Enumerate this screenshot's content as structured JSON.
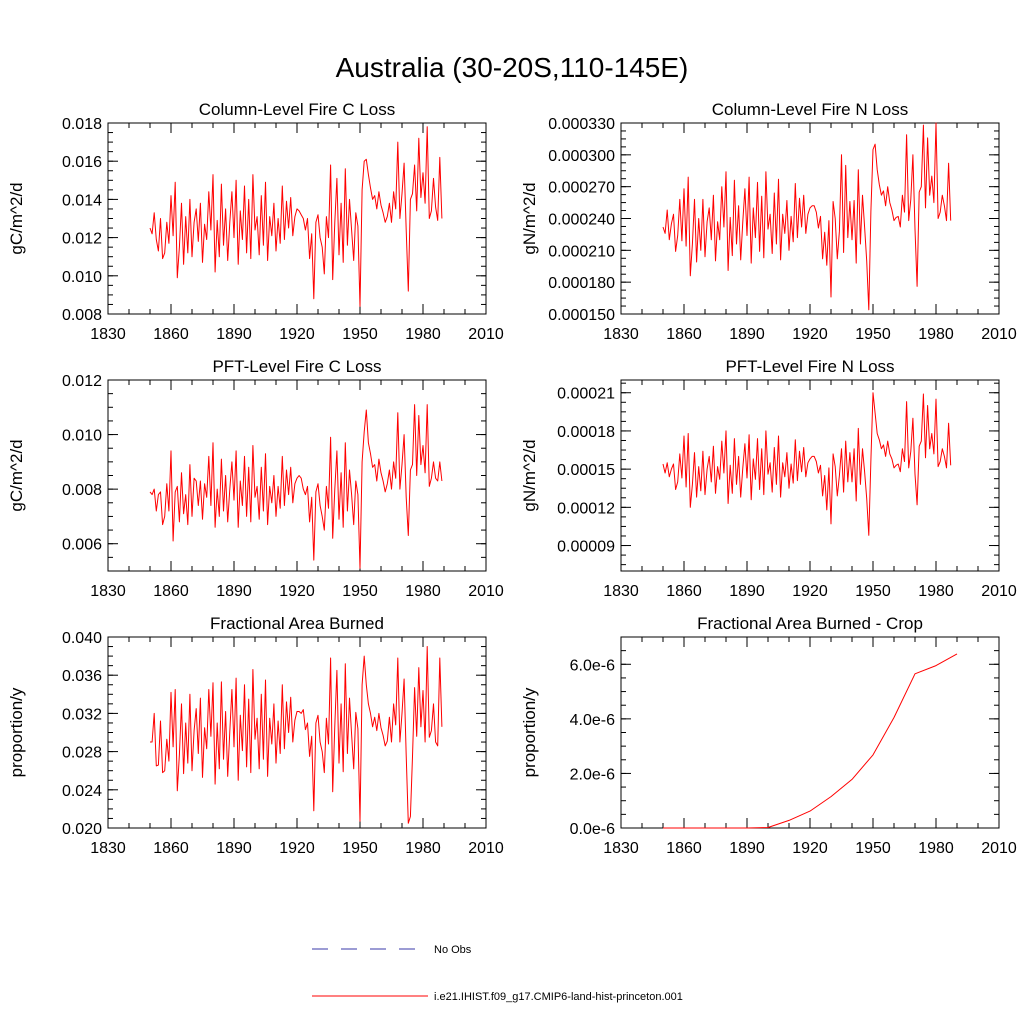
{
  "title": "Australia (30-20S,110-145E)",
  "colors": {
    "model_line": "#ff0000",
    "obs_line": "#3a3aa8",
    "axes": "#000000"
  },
  "legend": {
    "entries": [
      {
        "label": "No Obs",
        "style": "dashed",
        "color": "#3a3aa8"
      },
      {
        "label": "i.e21.IHIST.f09_g17.CMIP6-land-hist-princeton.001",
        "style": "solid",
        "color": "#ff0000"
      }
    ]
  },
  "chart_data": [
    {
      "type": "line",
      "title": "Column-Level Fire C Loss",
      "ylabel": "gC/m^2/d",
      "xlim": [
        1830,
        2010
      ],
      "xticks": [
        "1830",
        "1860",
        "1890",
        "1920",
        "1950",
        "1980",
        "2010"
      ],
      "ylim": [
        0.008,
        0.018
      ],
      "yticks": [
        "0.008",
        "0.010",
        "0.012",
        "0.014",
        "0.016",
        "0.018"
      ],
      "series": [
        {
          "x_start": 1850,
          "x_step": 1,
          "values": [
            0.0125,
            0.0122,
            0.0133,
            0.0119,
            0.0113,
            0.013,
            0.0109,
            0.0112,
            0.0128,
            0.0117,
            0.0142,
            0.0121,
            0.0149,
            0.0099,
            0.0115,
            0.0138,
            0.0106,
            0.0131,
            0.0112,
            0.014,
            0.011,
            0.0128,
            0.0135,
            0.0118,
            0.0138,
            0.0107,
            0.0127,
            0.0119,
            0.0144,
            0.0124,
            0.0153,
            0.0102,
            0.0129,
            0.011,
            0.0148,
            0.0116,
            0.0135,
            0.0108,
            0.0128,
            0.0144,
            0.012,
            0.015,
            0.0106,
            0.0134,
            0.0119,
            0.0147,
            0.0112,
            0.014,
            0.0109,
            0.0153,
            0.0124,
            0.0131,
            0.0111,
            0.0142,
            0.0116,
            0.0149,
            0.0108,
            0.0131,
            0.0121,
            0.0138,
            0.0113,
            0.013,
            0.0117,
            0.0147,
            0.0119,
            0.0139,
            0.0125,
            0.0141,
            0.0121,
            0.0131,
            0.0135,
            0.0134,
            0.0132,
            0.013,
            0.0124,
            0.013,
            0.0109,
            0.0122,
            0.0088,
            0.0128,
            0.0132,
            0.012,
            0.0115,
            0.0101,
            0.0131,
            0.012,
            0.0158,
            0.0098,
            0.0128,
            0.0151,
            0.0111,
            0.0138,
            0.0107,
            0.0156,
            0.0116,
            0.014,
            0.0124,
            0.0108,
            0.0133,
            0.0126,
            0.0084,
            0.0145,
            0.016,
            0.0161,
            0.0153,
            0.0146,
            0.014,
            0.0142,
            0.0135,
            0.0144,
            0.0137,
            0.0133,
            0.0128,
            0.0131,
            0.0138,
            0.0128,
            0.0144,
            0.0135,
            0.017,
            0.013,
            0.0143,
            0.0159,
            0.0124,
            0.0092,
            0.014,
            0.0143,
            0.0158,
            0.0134,
            0.0172,
            0.0141,
            0.0154,
            0.0138,
            0.0178,
            0.013,
            0.0134,
            0.0151,
            0.0136,
            0.0129,
            0.0162,
            0.013
          ]
        }
      ]
    },
    {
      "type": "line",
      "title": "Column-Level Fire N Loss",
      "ylabel": "gN/m^2/d",
      "xlim": [
        1830,
        2010
      ],
      "xticks": [
        "1830",
        "1860",
        "1890",
        "1920",
        "1950",
        "1980",
        "2010"
      ],
      "ylim": [
        0.00015,
        0.00033
      ],
      "yticks": [
        "0.000150",
        "0.000180",
        "0.000210",
        "0.000240",
        "0.000270",
        "0.000300",
        "0.000330"
      ],
      "series": [
        {
          "x_start": 1850,
          "x_step": 1,
          "values": [
            0.000232,
            0.000226,
            0.000248,
            0.00022,
            0.000235,
            0.000244,
            0.000209,
            0.000224,
            0.000258,
            0.000219,
            0.000268,
            0.000214,
            0.000279,
            0.000186,
            0.000216,
            0.000258,
            0.000199,
            0.00024,
            0.00021,
            0.000258,
            0.000204,
            0.000237,
            0.00025,
            0.00022,
            0.000262,
            0.0002,
            0.000237,
            0.00022,
            0.00027,
            0.000232,
            0.000284,
            0.000191,
            0.000241,
            0.000205,
            0.000276,
            0.000216,
            0.000252,
            0.000201,
            0.000237,
            0.000268,
            0.000224,
            0.000279,
            0.000198,
            0.00025,
            0.000222,
            0.000274,
            0.000209,
            0.000261,
            0.000203,
            0.000284,
            0.00023,
            0.000244,
            0.000207,
            0.000264,
            0.000216,
            0.000277,
            0.000201,
            0.000244,
            0.000226,
            0.000257,
            0.00021,
            0.000242,
            0.000218,
            0.000273,
            0.000222,
            0.000259,
            0.000232,
            0.000262,
            0.000226,
            0.000244,
            0.00025,
            0.000252,
            0.000252,
            0.000246,
            0.000231,
            0.000242,
            0.000202,
            0.000227,
            0.000196,
            0.000238,
            0.000166,
            0.000256,
            0.00024,
            0.000202,
            0.000228,
            0.0003,
            0.000208,
            0.00029,
            0.000222,
            0.000256,
            0.00022,
            0.000257,
            0.000198,
            0.000286,
            0.000216,
            0.000262,
            0.000232,
            0.0002,
            0.000154,
            0.000247,
            0.000305,
            0.00031,
            0.000286,
            0.000272,
            0.000262,
            0.000266,
            0.000252,
            0.00027,
            0.000255,
            0.000248,
            0.000238,
            0.000241,
            0.000242,
            0.000232,
            0.000262,
            0.000246,
            0.000319,
            0.000238,
            0.000258,
            0.0003,
            0.00023,
            0.000176,
            0.000265,
            0.00027,
            0.000328,
            0.00025,
            0.000316,
            0.000262,
            0.00028,
            0.000255,
            0.00033,
            0.00024,
            0.000246,
            0.000262,
            0.000252,
            0.000238,
            0.000292,
            0.000238
          ]
        }
      ]
    },
    {
      "type": "line",
      "title": "PFT-Level Fire C Loss",
      "ylabel": "gC/m^2/d",
      "xlim": [
        1830,
        2010
      ],
      "xticks": [
        "1830",
        "1860",
        "1890",
        "1920",
        "1950",
        "1980",
        "2010"
      ],
      "ylim": [
        0.005,
        0.012
      ],
      "yticks": [
        "0.006",
        "0.008",
        "0.010",
        "0.012"
      ],
      "series": [
        {
          "x_start": 1850,
          "x_step": 1,
          "values": [
            0.0079,
            0.0078,
            0.008,
            0.0072,
            0.0078,
            0.0079,
            0.0067,
            0.007,
            0.0082,
            0.0072,
            0.0094,
            0.0061,
            0.0079,
            0.0081,
            0.0068,
            0.0086,
            0.0071,
            0.0078,
            0.0067,
            0.0089,
            0.007,
            0.0084,
            0.0083,
            0.0074,
            0.0083,
            0.0069,
            0.0082,
            0.0077,
            0.0092,
            0.0074,
            0.0097,
            0.0066,
            0.008,
            0.007,
            0.0091,
            0.0072,
            0.0085,
            0.0068,
            0.008,
            0.009,
            0.0076,
            0.0094,
            0.0066,
            0.0083,
            0.0074,
            0.0092,
            0.007,
            0.0088,
            0.0068,
            0.0096,
            0.0077,
            0.0081,
            0.0069,
            0.0088,
            0.0072,
            0.0093,
            0.0067,
            0.0081,
            0.0075,
            0.0085,
            0.007,
            0.0081,
            0.0073,
            0.0092,
            0.0074,
            0.0087,
            0.0078,
            0.0088,
            0.0075,
            0.0082,
            0.0084,
            0.0085,
            0.0084,
            0.008,
            0.0078,
            0.0081,
            0.0068,
            0.0077,
            0.0054,
            0.0079,
            0.0082,
            0.0074,
            0.007,
            0.0065,
            0.0081,
            0.0073,
            0.0099,
            0.0062,
            0.008,
            0.0094,
            0.0069,
            0.0086,
            0.0066,
            0.0097,
            0.0072,
            0.0087,
            0.0078,
            0.0067,
            0.0083,
            0.0078,
            0.0051,
            0.009,
            0.0101,
            0.0109,
            0.0097,
            0.0093,
            0.0088,
            0.0089,
            0.0083,
            0.0091,
            0.0086,
            0.0083,
            0.0079,
            0.0082,
            0.0087,
            0.008,
            0.009,
            0.0084,
            0.0108,
            0.008,
            0.0089,
            0.01,
            0.0077,
            0.0063,
            0.0087,
            0.0089,
            0.0111,
            0.0085,
            0.0107,
            0.0089,
            0.0096,
            0.0086,
            0.0111,
            0.0081,
            0.0084,
            0.009,
            0.0084,
            0.0083,
            0.009,
            0.0083
          ]
        }
      ]
    },
    {
      "type": "line",
      "title": "PFT-Level Fire N Loss",
      "ylabel": "gN/m^2/d",
      "xlim": [
        1830,
        2010
      ],
      "xticks": [
        "1830",
        "1860",
        "1890",
        "1920",
        "1950",
        "1980",
        "2010"
      ],
      "ylim": [
        7e-05,
        0.00022
      ],
      "yticks": [
        "0.00009",
        "0.00012",
        "0.00015",
        "0.00018",
        "0.00021"
      ],
      "series": [
        {
          "x_start": 1850,
          "x_step": 1,
          "values": [
            0.000154,
            0.000147,
            0.000155,
            0.000144,
            0.00015,
            0.000154,
            0.000134,
            0.00014,
            0.000162,
            0.000143,
            0.000176,
            0.000136,
            0.000178,
            0.00012,
            0.000138,
            0.000163,
            0.000128,
            0.000152,
            0.000133,
            0.000164,
            0.00013,
            0.00015,
            0.00016,
            0.00014,
            0.000168,
            0.000131,
            0.000152,
            0.000142,
            0.000172,
            0.000147,
            0.00018,
            0.000123,
            0.000153,
            0.000131,
            0.000174,
            0.000138,
            0.00016,
            0.000128,
            0.000151,
            0.00017,
            0.000143,
            0.000177,
            0.000126,
            0.000158,
            0.000142,
            0.000174,
            0.000134,
            0.000166,
            0.00013,
            0.00018,
            0.000146,
            0.000155,
            0.000132,
            0.000167,
            0.000138,
            0.000176,
            0.000128,
            0.000155,
            0.000144,
            0.000163,
            0.000135,
            0.000154,
            0.000139,
            0.000173,
            0.000141,
            0.000164,
            0.000148,
            0.000167,
            0.000144,
            0.000155,
            0.000158,
            0.00016,
            0.00016,
            0.000156,
            0.000147,
            0.000153,
            0.000129,
            0.000145,
            0.000118,
            0.000151,
            0.000107,
            0.000162,
            0.000152,
            0.000129,
            0.000145,
            0.000166,
            0.000132,
            0.000172,
            0.00014,
            0.000163,
            0.00014,
            0.000166,
            0.000125,
            0.000182,
            0.000138,
            0.000166,
            0.000148,
            0.000127,
            9.8e-05,
            0.000157,
            0.00021,
            0.000194,
            0.000178,
            0.000173,
            0.000166,
            0.000169,
            0.00016,
            0.000172,
            0.000162,
            0.000158,
            0.000151,
            0.000153,
            0.000154,
            0.000148,
            0.000166,
            0.000156,
            0.000203,
            0.000151,
            0.000164,
            0.00019,
            0.000146,
            0.000122,
            0.000168,
            0.000172,
            0.000209,
            0.000159,
            0.0002,
            0.000166,
            0.000178,
            0.000162,
            0.000205,
            0.000152,
            0.000156,
            0.000166,
            0.00016,
            0.000151,
            0.000186,
            0.000153
          ]
        }
      ]
    },
    {
      "type": "line",
      "title": "Fractional Area Burned",
      "ylabel": "proportion/y",
      "xlim": [
        1830,
        2010
      ],
      "xticks": [
        "1830",
        "1860",
        "1890",
        "1920",
        "1950",
        "1980",
        "2010"
      ],
      "ylim": [
        0.02,
        0.04
      ],
      "yticks": [
        "0.020",
        "0.024",
        "0.028",
        "0.032",
        "0.036",
        "0.040"
      ],
      "series": [
        {
          "x_start": 1850,
          "x_step": 1,
          "values": [
            0.029,
            0.029,
            0.032,
            0.0265,
            0.0266,
            0.0312,
            0.0258,
            0.026,
            0.0293,
            0.027,
            0.0342,
            0.0285,
            0.0345,
            0.0239,
            0.0277,
            0.033,
            0.0257,
            0.031,
            0.0268,
            0.034,
            0.026,
            0.0302,
            0.0325,
            0.0278,
            0.0336,
            0.0253,
            0.0305,
            0.0283,
            0.0345,
            0.0296,
            0.0352,
            0.0246,
            0.031,
            0.0262,
            0.0353,
            0.0272,
            0.0322,
            0.0254,
            0.0301,
            0.0345,
            0.0285,
            0.0357,
            0.025,
            0.0318,
            0.0281,
            0.035,
            0.0264,
            0.0335,
            0.0258,
            0.0366,
            0.0293,
            0.0315,
            0.0262,
            0.034,
            0.0272,
            0.0355,
            0.0254,
            0.0315,
            0.0288,
            0.033,
            0.0268,
            0.0312,
            0.0278,
            0.035,
            0.0283,
            0.0332,
            0.03,
            0.0337,
            0.029,
            0.0313,
            0.0322,
            0.0322,
            0.032,
            0.0324,
            0.0303,
            0.031,
            0.0275,
            0.0296,
            0.0218,
            0.031,
            0.0318,
            0.029,
            0.028,
            0.0258,
            0.0315,
            0.0288,
            0.0378,
            0.0238,
            0.0307,
            0.0365,
            0.0268,
            0.033,
            0.0259,
            0.0372,
            0.0278,
            0.0336,
            0.0298,
            0.0262,
            0.0321,
            0.0304,
            0.0207,
            0.035,
            0.038,
            0.035,
            0.033,
            0.032,
            0.0306,
            0.0316,
            0.0302,
            0.032,
            0.0305,
            0.0297,
            0.0286,
            0.0291,
            0.0316,
            0.029,
            0.033,
            0.0308,
            0.0378,
            0.029,
            0.032,
            0.0356,
            0.0276,
            0.0205,
            0.0212,
            0.0275,
            0.0347,
            0.0296,
            0.0368,
            0.0306,
            0.0344,
            0.029,
            0.039,
            0.0295,
            0.0302,
            0.033,
            0.029,
            0.0286,
            0.0378,
            0.0306
          ]
        }
      ]
    },
    {
      "type": "line",
      "title": "Fractional Area Burned - Crop",
      "ylabel": "proportion/y",
      "xlim": [
        1830,
        2010
      ],
      "xticks": [
        "1830",
        "1860",
        "1890",
        "1920",
        "1950",
        "1980",
        "2010"
      ],
      "ylim": [
        0.0,
        7e-06
      ],
      "yticks": [
        "0.0e-6",
        "2.0e-6",
        "4.0e-6",
        "6.0e-6"
      ],
      "series": [
        {
          "x": [
            1850,
            1860,
            1870,
            1880,
            1890,
            1900,
            1910,
            1920,
            1930,
            1940,
            1950,
            1960,
            1970,
            1980,
            1990
          ],
          "values": [
            0.0,
            0.0,
            0.0,
            0.0,
            0.0,
            2e-08,
            2.8e-07,
            6.2e-07,
            1.15e-06,
            1.78e-06,
            2.68e-06,
            4.05e-06,
            5.65e-06,
            5.95e-06,
            6.38e-06
          ]
        }
      ]
    }
  ]
}
